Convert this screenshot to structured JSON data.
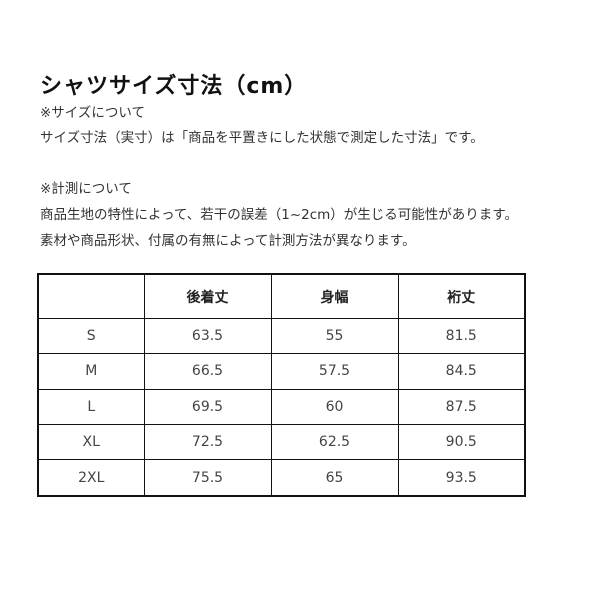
{
  "title": "シャツサイズ寸法（cm）",
  "notes": [
    "※サイズについて",
    "サイズ寸法（実寸）は「商品を平置きにした状態で測定した寸法」です。",
    "※計測について",
    "商品生地の特性によって、若干の誤差（1~2cm）が生じる可能性があります。",
    "素材や商品形状、付属の有無によって計測方法が異なります。"
  ],
  "table": {
    "headers": [
      "",
      "後着丈",
      "身幅",
      "裄丈"
    ],
    "rows": [
      [
        "S",
        "63.5",
        "55",
        "81.5"
      ],
      [
        "M",
        "66.5",
        "57.5",
        "84.5"
      ],
      [
        "L",
        "69.5",
        "60",
        "87.5"
      ],
      [
        "XL",
        "72.5",
        "62.5",
        "90.5"
      ],
      [
        "2XL",
        "75.5",
        "65",
        "93.5"
      ]
    ]
  }
}
